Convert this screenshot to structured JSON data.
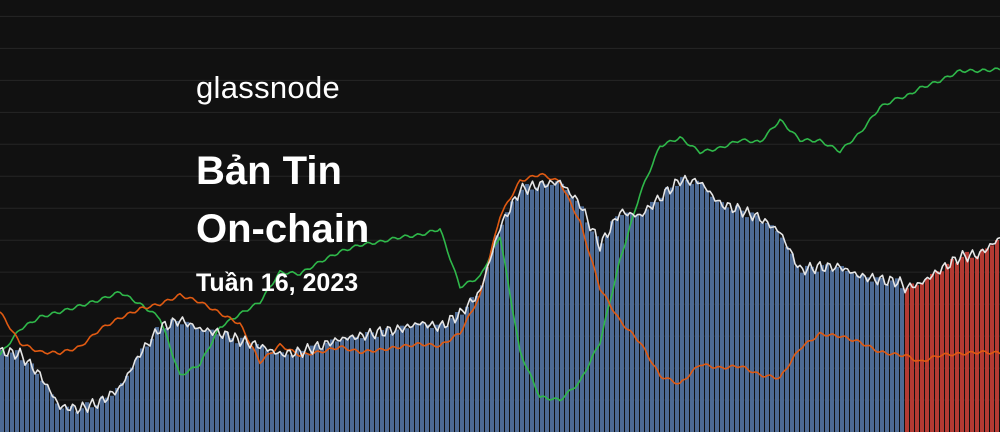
{
  "brand": {
    "name": "glassnode"
  },
  "title": {
    "line1": "Bản Tin",
    "line2": "On-chain",
    "week": "Tuần 16, 2023"
  },
  "colors": {
    "background": "#111111",
    "gridline": "#262626",
    "bar_blue": "#4d6a94",
    "bar_red": "#b33a33",
    "price_line": "#e6e6e6",
    "green_line": "#2fb84a",
    "orange_line": "#e05a12"
  },
  "chart_data": {
    "type": "bar",
    "title": "",
    "xlabel": "",
    "ylabel": "",
    "grid": true,
    "ylim": [
      0,
      100
    ],
    "x": [
      0,
      20,
      40,
      60,
      80,
      100,
      120,
      140,
      160,
      180,
      200,
      220,
      240,
      260,
      280,
      300,
      320,
      340,
      360,
      380,
      400,
      420,
      440,
      460,
      480,
      500,
      520,
      540,
      560,
      580,
      600,
      620,
      640,
      660,
      680,
      700,
      720,
      740,
      760,
      780,
      800,
      820,
      840,
      860,
      880,
      900,
      905,
      920,
      940,
      960,
      980,
      1000
    ],
    "series": [
      {
        "values": [
          18.7,
          18.0,
          13.2,
          5.8,
          5.4,
          6.9,
          10.2,
          18.1,
          24.1,
          25.9,
          23.8,
          22.9,
          21.2,
          19.9,
          18.0,
          18.5,
          19.9,
          21.5,
          22.2,
          23.1,
          23.8,
          25.2,
          24.3,
          27.3,
          32.4,
          47.4,
          56.0,
          57.2,
          57.9,
          52.8,
          43.1,
          50.9,
          50.0,
          54.2,
          58.3,
          57.9,
          52.8,
          51.4,
          49.5,
          46.3,
          37.5,
          38.2,
          38.2,
          36.1,
          35.2,
          34.7,
          33.3,
          34.3,
          37.5,
          40.5,
          41.2,
          44.9
        ]
      },
      {
        "values": [
          17.8,
          23.8,
          26.6,
          27.8,
          29.2,
          30.6,
          32.4,
          29.6,
          26.4,
          13.0,
          15.7,
          24.3,
          27.3,
          30.1,
          37.0,
          36.6,
          39.4,
          41.7,
          43.3,
          44.0,
          45.1,
          45.6,
          47.0,
          33.6,
          35.9,
          45.4,
          18.5,
          8.1,
          7.4,
          11.6,
          20.8,
          39.8,
          55.1,
          66.2,
          68.1,
          64.8,
          65.7,
          67.6,
          67.1,
          72.2,
          67.6,
          67.4,
          65.0,
          69.2,
          75.2,
          77.5,
          77.5,
          79.6,
          81.3,
          83.6,
          83.6,
          84.0
        ]
      },
      {
        "values": [
          27.8,
          20.6,
          18.5,
          18.3,
          19.7,
          23.8,
          26.4,
          28.5,
          29.6,
          31.7,
          30.1,
          27.5,
          25.0,
          16.2,
          20.1,
          17.8,
          18.5,
          19.7,
          18.5,
          19.0,
          19.7,
          20.4,
          19.9,
          22.9,
          31.5,
          50.0,
          58.1,
          59.7,
          57.9,
          48.6,
          33.3,
          25.7,
          20.8,
          13.0,
          11.1,
          15.7,
          14.8,
          15.3,
          13.2,
          12.5,
          19.4,
          22.7,
          22.2,
          20.8,
          18.5,
          17.8,
          17.8,
          16.2,
          17.8,
          18.1,
          18.5,
          18.3
        ]
      }
    ]
  }
}
